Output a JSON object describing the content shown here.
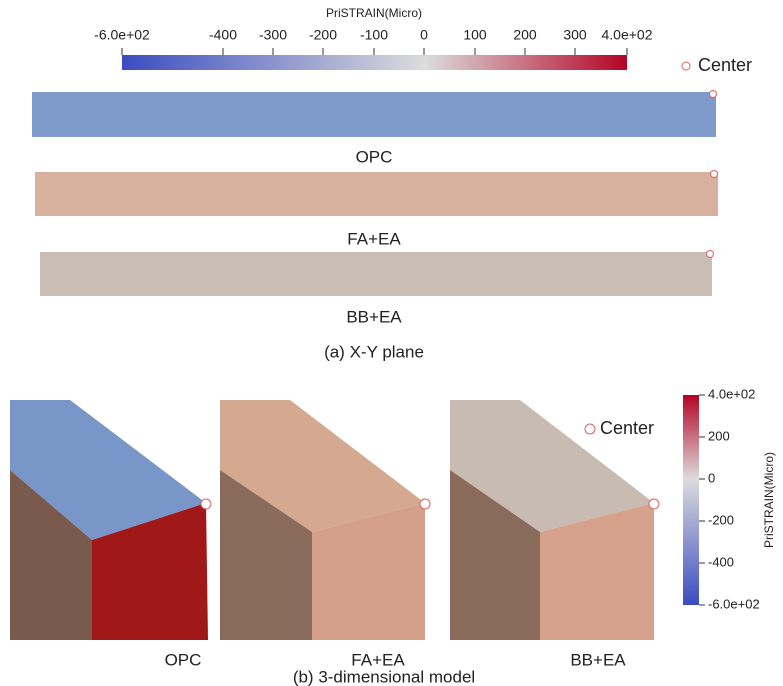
{
  "colorbar_top": {
    "title": "PriSTRAIN(Micro)",
    "ticks": [
      "-6.0e+02",
      "-400",
      "-300",
      "-200",
      "-100",
      "0",
      "100",
      "200",
      "300",
      "4.0e+02"
    ]
  },
  "legend_top": "Center",
  "panel_a": {
    "labels": [
      "OPC",
      "FA+EA",
      "BB+EA"
    ],
    "caption": "(a) X-Y plane"
  },
  "colorbar_right": {
    "title": "PriSTRAIN(Micro)",
    "ticks": [
      "4.0e+02",
      "200",
      "0",
      "-200",
      "-400",
      "-6.0e+02"
    ]
  },
  "legend_right": "Center",
  "panel_b": {
    "labels": [
      "OPC",
      "FA+EA",
      "BB+EA"
    ],
    "caption": "(b) 3-dimensional model"
  }
}
